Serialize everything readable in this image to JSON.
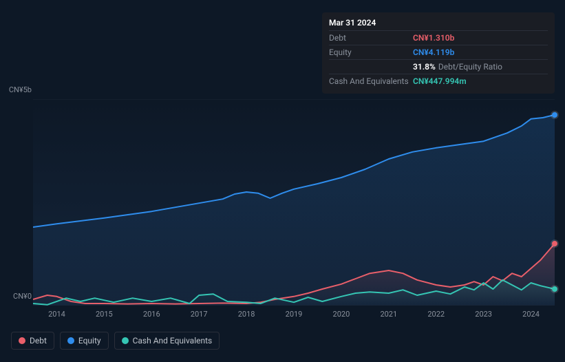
{
  "tooltip": {
    "date": "Mar 31 2024",
    "rows": [
      {
        "label": "Debt",
        "value": "CN¥1.310b",
        "color": "#e95f6a"
      },
      {
        "label": "Equity",
        "value": "CN¥4.119b",
        "color": "#2f8ded"
      },
      {
        "label": "",
        "value": "31.8%",
        "suffix": "Debt/Equity Ratio",
        "color": "#ffffff"
      },
      {
        "label": "Cash And Equivalents",
        "value": "CN¥447.994m",
        "color": "#35c6b4"
      }
    ]
  },
  "chart": {
    "type": "area-line",
    "background_color_top": "#0d1826",
    "background_color_bottom": "#14253b",
    "grid_color": "#1b2636",
    "axis_label_color": "#8a919c",
    "axis_fontsize": 11,
    "y": {
      "min": 0,
      "max": 5,
      "unit_prefix": "CN¥",
      "unit_suffix": "b",
      "ticks": [
        {
          "v": 5,
          "label": "CN¥5b"
        },
        {
          "v": 0,
          "label": "CN¥0"
        }
      ]
    },
    "x": {
      "min": 2013.5,
      "max": 2024.5,
      "ticks": [
        2014,
        2015,
        2016,
        2017,
        2018,
        2019,
        2020,
        2021,
        2022,
        2023,
        2024
      ]
    },
    "series": [
      {
        "name": "Equity",
        "color": "#2f8ded",
        "fill_opacity": 0.18,
        "line_width": 2,
        "end_dot": true,
        "points": [
          [
            2013.5,
            1.9
          ],
          [
            2014.0,
            1.98
          ],
          [
            2014.5,
            2.05
          ],
          [
            2015.0,
            2.12
          ],
          [
            2015.5,
            2.2
          ],
          [
            2016.0,
            2.28
          ],
          [
            2016.5,
            2.38
          ],
          [
            2017.0,
            2.48
          ],
          [
            2017.5,
            2.58
          ],
          [
            2017.75,
            2.7
          ],
          [
            2018.0,
            2.75
          ],
          [
            2018.25,
            2.72
          ],
          [
            2018.5,
            2.6
          ],
          [
            2018.75,
            2.72
          ],
          [
            2019.0,
            2.82
          ],
          [
            2019.5,
            2.95
          ],
          [
            2020.0,
            3.1
          ],
          [
            2020.5,
            3.3
          ],
          [
            2021.0,
            3.55
          ],
          [
            2021.5,
            3.72
          ],
          [
            2022.0,
            3.82
          ],
          [
            2022.5,
            3.9
          ],
          [
            2023.0,
            3.98
          ],
          [
            2023.5,
            4.18
          ],
          [
            2023.8,
            4.35
          ],
          [
            2024.0,
            4.52
          ],
          [
            2024.25,
            4.55
          ],
          [
            2024.5,
            4.62
          ]
        ]
      },
      {
        "name": "Debt",
        "color": "#e95f6a",
        "fill_opacity": 0.22,
        "line_width": 2,
        "end_dot": true,
        "points": [
          [
            2013.5,
            0.15
          ],
          [
            2013.8,
            0.25
          ],
          [
            2014.0,
            0.22
          ],
          [
            2014.3,
            0.1
          ],
          [
            2014.6,
            0.05
          ],
          [
            2015.0,
            0.05
          ],
          [
            2015.5,
            0.04
          ],
          [
            2016.0,
            0.05
          ],
          [
            2016.5,
            0.04
          ],
          [
            2017.0,
            0.05
          ],
          [
            2017.5,
            0.06
          ],
          [
            2018.0,
            0.05
          ],
          [
            2018.3,
            0.08
          ],
          [
            2018.6,
            0.15
          ],
          [
            2019.0,
            0.22
          ],
          [
            2019.3,
            0.3
          ],
          [
            2019.6,
            0.4
          ],
          [
            2020.0,
            0.52
          ],
          [
            2020.3,
            0.65
          ],
          [
            2020.6,
            0.78
          ],
          [
            2021.0,
            0.85
          ],
          [
            2021.3,
            0.78
          ],
          [
            2021.6,
            0.62
          ],
          [
            2022.0,
            0.5
          ],
          [
            2022.3,
            0.45
          ],
          [
            2022.6,
            0.5
          ],
          [
            2022.8,
            0.58
          ],
          [
            2023.0,
            0.5
          ],
          [
            2023.2,
            0.7
          ],
          [
            2023.4,
            0.6
          ],
          [
            2023.6,
            0.78
          ],
          [
            2023.8,
            0.7
          ],
          [
            2024.0,
            0.9
          ],
          [
            2024.2,
            1.1
          ],
          [
            2024.5,
            1.5
          ]
        ]
      },
      {
        "name": "Cash And Equivalents",
        "color": "#35c6b4",
        "fill_opacity": 0.15,
        "line_width": 2,
        "end_dot": true,
        "points": [
          [
            2013.5,
            0.05
          ],
          [
            2013.8,
            0.02
          ],
          [
            2014.2,
            0.18
          ],
          [
            2014.5,
            0.1
          ],
          [
            2014.8,
            0.18
          ],
          [
            2015.2,
            0.08
          ],
          [
            2015.6,
            0.18
          ],
          [
            2016.0,
            0.1
          ],
          [
            2016.4,
            0.18
          ],
          [
            2016.8,
            0.05
          ],
          [
            2017.0,
            0.25
          ],
          [
            2017.3,
            0.28
          ],
          [
            2017.6,
            0.1
          ],
          [
            2018.0,
            0.08
          ],
          [
            2018.3,
            0.05
          ],
          [
            2018.6,
            0.18
          ],
          [
            2019.0,
            0.08
          ],
          [
            2019.3,
            0.2
          ],
          [
            2019.6,
            0.1
          ],
          [
            2020.0,
            0.22
          ],
          [
            2020.3,
            0.3
          ],
          [
            2020.6,
            0.33
          ],
          [
            2021.0,
            0.3
          ],
          [
            2021.3,
            0.38
          ],
          [
            2021.6,
            0.25
          ],
          [
            2022.0,
            0.35
          ],
          [
            2022.3,
            0.28
          ],
          [
            2022.6,
            0.45
          ],
          [
            2022.8,
            0.38
          ],
          [
            2023.0,
            0.55
          ],
          [
            2023.2,
            0.4
          ],
          [
            2023.4,
            0.62
          ],
          [
            2023.6,
            0.5
          ],
          [
            2023.8,
            0.38
          ],
          [
            2024.0,
            0.55
          ],
          [
            2024.2,
            0.48
          ],
          [
            2024.5,
            0.4
          ]
        ]
      }
    ]
  },
  "legend": {
    "items": [
      {
        "label": "Debt",
        "color": "#e95f6a"
      },
      {
        "label": "Equity",
        "color": "#2f8ded"
      },
      {
        "label": "Cash And Equivalents",
        "color": "#35c6b4"
      }
    ]
  }
}
